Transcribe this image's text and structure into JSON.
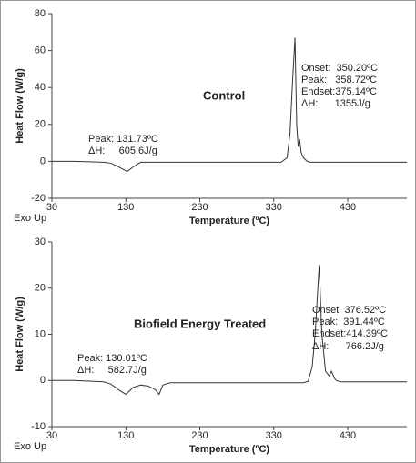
{
  "chart_data": [
    {
      "type": "line",
      "ylabel": "Heat Flow (W/g)",
      "xlabel": "Temperature (ºC)",
      "note": "Exo Up",
      "annotations": [
        "Control",
        "Peak: 131.73ºC",
        "ΔH:     605.6J/g",
        "Onset:  350.20ºC",
        "Peak:   358.72ºC",
        "Endset:375.14ºC",
        "ΔH:      1355J/g"
      ],
      "xlim": [
        30,
        510
      ],
      "xticks": [
        30,
        130,
        230,
        330,
        430
      ],
      "ylim": [
        -20,
        80
      ],
      "yticks": [
        -20,
        0,
        20,
        40,
        60,
        80
      ],
      "series": [
        {
          "color": "#333333",
          "x": [
            30,
            60,
            100,
            110,
            120,
            131.73,
            140,
            150,
            200,
            300,
            340,
            348,
            352,
            355,
            358.72,
            361,
            363,
            365,
            367,
            370,
            375.14,
            380,
            400,
            450,
            510
          ],
          "values": [
            0,
            0,
            -0.5,
            -1,
            -3,
            -5.5,
            -3,
            -0.5,
            -0.5,
            -0.5,
            -0.5,
            2,
            15,
            40,
            67,
            20,
            8,
            12,
            5,
            2,
            0,
            -0.5,
            -0.5,
            -0.5,
            -0.5
          ]
        }
      ]
    },
    {
      "type": "line",
      "ylabel": "Heat Flow (W/g)",
      "xlabel": "Temperature (ºC)",
      "note": "Exo Up",
      "annotations": [
        "Biofield Energy Treated",
        "Peak: 130.01ºC",
        "ΔH:     582.7J/g",
        "Onset  376.52ºC",
        "Peak:  391.44ºC",
        "Endset:414.39ºC",
        "ΔH:      766.2J/g"
      ],
      "xlim": [
        30,
        510
      ],
      "xticks": [
        30,
        130,
        230,
        330,
        430
      ],
      "ylim": [
        -10,
        30
      ],
      "yticks": [
        -10,
        0,
        10,
        20,
        30
      ],
      "series": [
        {
          "color": "#333333",
          "x": [
            30,
            60,
            100,
            110,
            120,
            130.01,
            140,
            150,
            160,
            170,
            175,
            180,
            190,
            300,
            370,
            376.52,
            382,
            386,
            391.44,
            395,
            400,
            405,
            408,
            412,
            414.39,
            420,
            450,
            510
          ],
          "values": [
            0,
            0,
            -0.3,
            -0.8,
            -2,
            -3,
            -1.5,
            -1,
            -1.2,
            -2,
            -3,
            -1,
            -0.5,
            -0.5,
            -0.5,
            -0.2,
            3,
            10,
            25,
            10,
            2,
            1,
            2,
            0.5,
            0,
            -0.3,
            -0.3,
            -0.3
          ]
        }
      ]
    }
  ]
}
